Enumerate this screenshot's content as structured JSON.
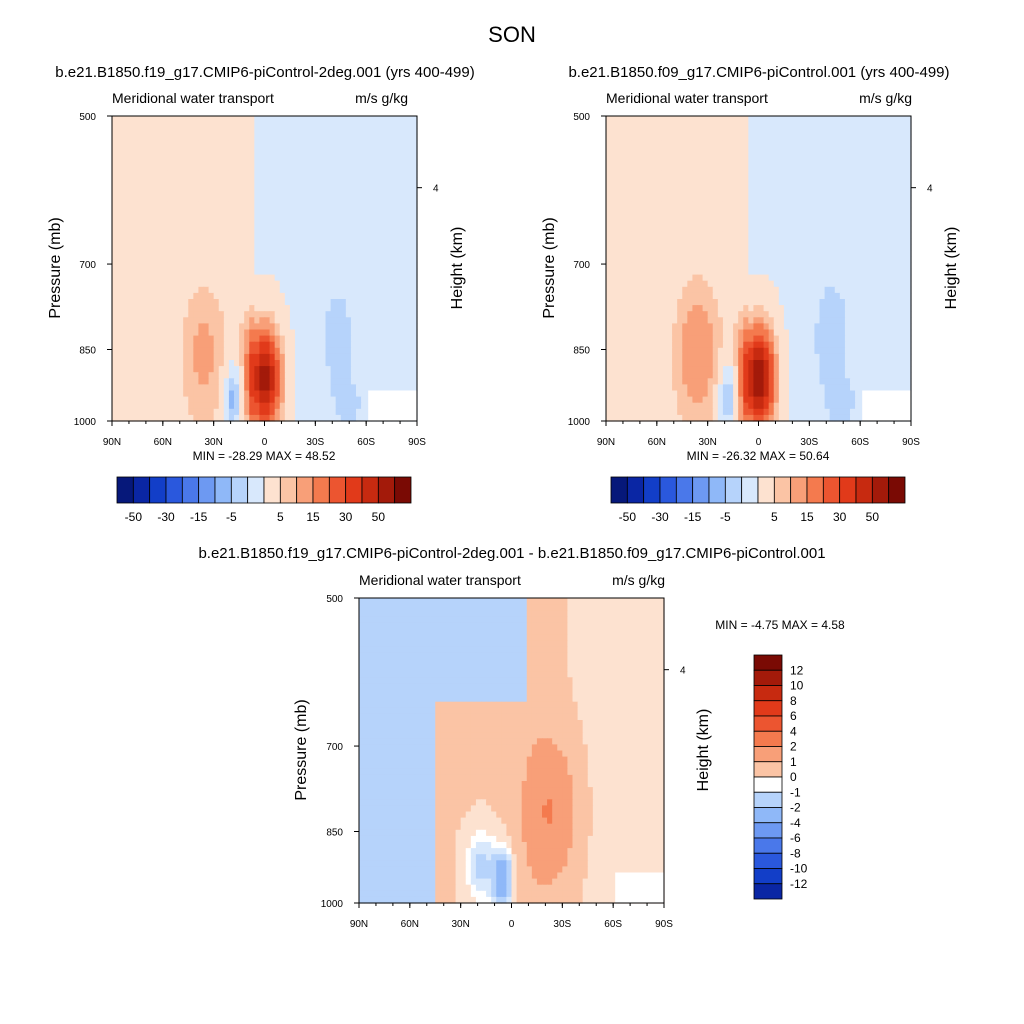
{
  "figure": {
    "title": "SON"
  },
  "colors": {
    "warm": [
      "#fde2d0",
      "#fbc4a5",
      "#f89f78",
      "#f47a4e",
      "#ec5530",
      "#e13a1a",
      "#c72a10",
      "#a31a0a",
      "#7a0a04"
    ],
    "cool": [
      "#d8e8fc",
      "#b6d3fb",
      "#8fb8f8",
      "#6d99f2",
      "#4a78ea",
      "#2a58dd",
      "#123ec8",
      "#0a26a4",
      "#06187a"
    ],
    "white": "#ffffff"
  },
  "panels": [
    {
      "title": "b.e21.B1850.f19_g17.CMIP6-piControl-2deg.001 (yrs 400-499)",
      "left_label": "Meridional water transport",
      "right_label": "m/s g/kg",
      "min_max": "MIN = -28.29  MAX =  48.52"
    },
    {
      "title": "b.e21.B1850.f09_g17.CMIP6-piControl.001 (yrs 400-499)",
      "left_label": "Meridional water transport",
      "right_label": "m/s g/kg",
      "min_max": "MIN = -26.32  MAX =  50.64"
    },
    {
      "title": "b.e21.B1850.f19_g17.CMIP6-piControl-2deg.001 - b.e21.B1850.f09_g17.CMIP6-piControl.001",
      "left_label": "Meridional water transport",
      "right_label": "m/s g/kg",
      "min_max": "MIN =  -4.75  MAX =   4.58"
    }
  ],
  "chart_data": [
    {
      "type": "heatmap",
      "title": "b.e21.B1850.f19_g17.CMIP6-piControl-2deg.001 (yrs 400-499)",
      "xlabel": "",
      "ylabel": "Pressure (mb)",
      "y2label": "Height (km)",
      "x_ticks": [
        "90N",
        "60N",
        "30N",
        "0",
        "30S",
        "60S",
        "90S"
      ],
      "y_ticks": [
        "500",
        "700",
        "850",
        "1000"
      ],
      "y2_ticks": [
        "4"
      ],
      "xlim": [
        90,
        -90
      ],
      "ylim": [
        1000,
        500
      ],
      "y_scale": "log",
      "min": -28.29,
      "max": 48.52,
      "colorbar_labels": [
        "-50",
        "-30",
        "-15",
        "-5",
        "5",
        "15",
        "30",
        "50"
      ]
    },
    {
      "type": "heatmap",
      "title": "b.e21.B1850.f09_g17.CMIP6-piControl.001 (yrs 400-499)",
      "xlabel": "",
      "ylabel": "Pressure (mb)",
      "y2label": "Height (km)",
      "x_ticks": [
        "90N",
        "60N",
        "30N",
        "0",
        "30S",
        "60S",
        "90S"
      ],
      "y_ticks": [
        "500",
        "700",
        "850",
        "1000"
      ],
      "y2_ticks": [
        "4"
      ],
      "xlim": [
        90,
        -90
      ],
      "ylim": [
        1000,
        500
      ],
      "y_scale": "log",
      "min": -26.32,
      "max": 50.64,
      "colorbar_labels": [
        "-50",
        "-30",
        "-15",
        "-5",
        "5",
        "15",
        "30",
        "50"
      ]
    },
    {
      "type": "heatmap",
      "title": "b.e21.B1850.f19_g17.CMIP6-piControl-2deg.001 - b.e21.B1850.f09_g17.CMIP6-piControl.001",
      "xlabel": "",
      "ylabel": "Pressure (mb)",
      "y2label": "Height (km)",
      "x_ticks": [
        "90N",
        "60N",
        "30N",
        "0",
        "30S",
        "60S",
        "90S"
      ],
      "y_ticks": [
        "500",
        "700",
        "850",
        "1000"
      ],
      "y2_ticks": [
        "4"
      ],
      "xlim": [
        90,
        -90
      ],
      "ylim": [
        1000,
        500
      ],
      "y_scale": "log",
      "min": -4.75,
      "max": 4.58,
      "colorbar_labels": [
        "12",
        "10",
        "8",
        "6",
        "4",
        "2",
        "1",
        "0",
        "-1",
        "-2",
        "-4",
        "-6",
        "-8",
        "-10",
        "-12"
      ]
    }
  ]
}
